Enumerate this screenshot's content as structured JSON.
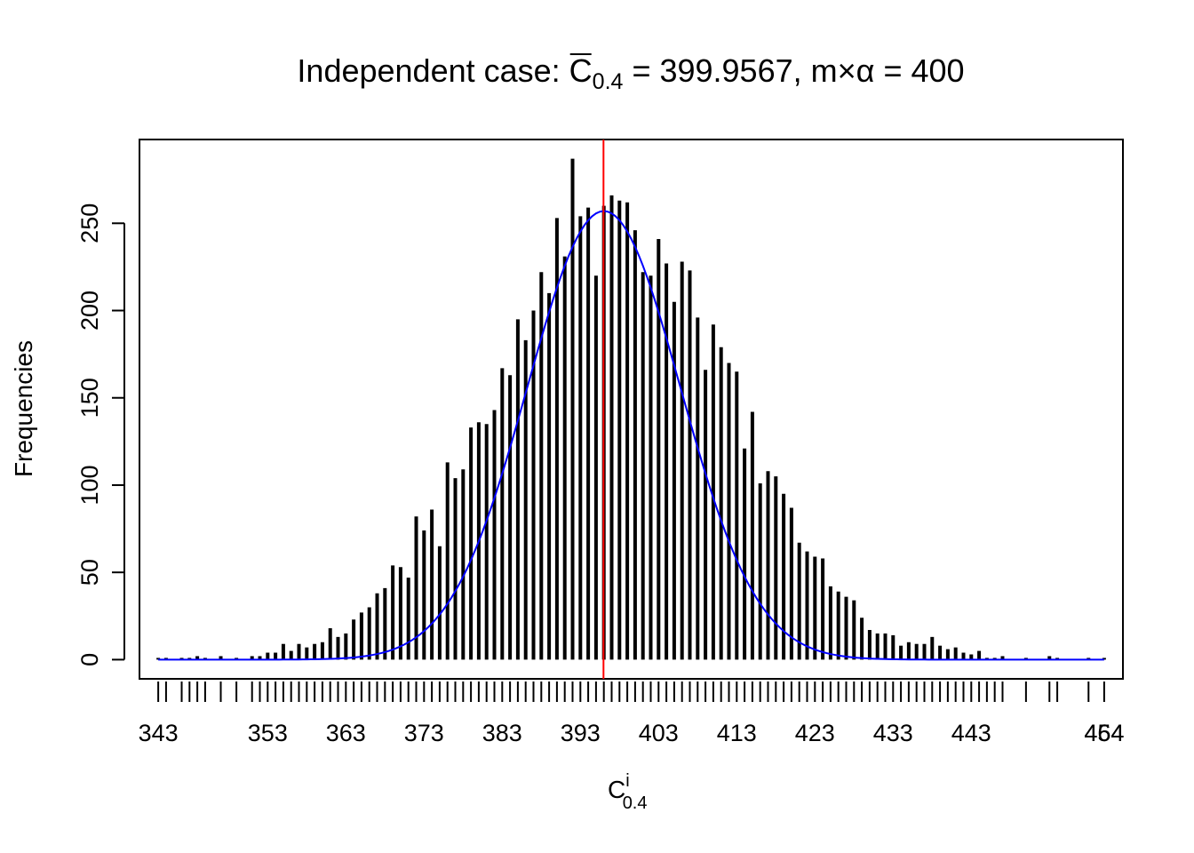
{
  "chart_data": {
    "type": "bar",
    "title": {
      "prefix": "Independent case: ",
      "stat_symbol": "C",
      "stat_subscript": "0.4",
      "stat_value": " = 399.9567, ",
      "product_m": "m",
      "product_times": "×",
      "product_alpha": "α",
      "product_value": " = 400"
    },
    "xlabel": {
      "base": "C",
      "superscript": "i",
      "subscript": "0.4"
    },
    "ylabel": "Frequencies",
    "xlim": [
      340.6,
      466.4
    ],
    "ylim": [
      -11,
      298
    ],
    "y_ticks": [
      0,
      50,
      100,
      150,
      200,
      250
    ],
    "x_tick_labels": [
      "343",
      "353",
      "363",
      "373",
      "383",
      "393",
      "403",
      "413",
      "423",
      "433",
      "443",
      "454",
      "464"
    ],
    "grid": false,
    "colors": {
      "bars": "#000000",
      "reference_line": "#ff0000",
      "density_curve": "#0000ff",
      "frame": "#000000"
    },
    "reference_line": {
      "x": 399.9567
    },
    "density_curve": {
      "mean": 400,
      "sd": 9.8,
      "peak": 257
    },
    "x": [
      343,
      344,
      346,
      347,
      348,
      349,
      351,
      353,
      355,
      356,
      357,
      358,
      359,
      360,
      361,
      362,
      363,
      364,
      365,
      366,
      367,
      368,
      369,
      370,
      371,
      372,
      373,
      374,
      375,
      376,
      377,
      378,
      379,
      380,
      381,
      382,
      383,
      384,
      385,
      386,
      387,
      388,
      389,
      390,
      391,
      392,
      393,
      394,
      395,
      396,
      397,
      398,
      399,
      400,
      401,
      402,
      403,
      404,
      405,
      406,
      407,
      408,
      409,
      410,
      411,
      412,
      413,
      414,
      415,
      416,
      417,
      418,
      419,
      420,
      421,
      422,
      423,
      424,
      425,
      426,
      427,
      428,
      429,
      430,
      431,
      432,
      433,
      434,
      435,
      436,
      437,
      438,
      439,
      440,
      441,
      442,
      443,
      444,
      445,
      446,
      447,
      448,
      449,
      450,
      451,
      454,
      457,
      458,
      462,
      464
    ],
    "values": [
      1,
      1,
      1,
      1,
      2,
      1,
      2,
      1,
      2,
      2,
      4,
      4,
      9,
      5,
      9,
      7,
      9,
      10,
      18,
      13,
      15,
      23,
      27,
      30,
      38,
      41,
      54,
      53,
      47,
      82,
      74,
      86,
      65,
      113,
      104,
      109,
      133,
      136,
      135,
      143,
      167,
      163,
      195,
      183,
      200,
      222,
      210,
      253,
      231,
      287,
      254,
      259,
      220,
      260,
      266,
      263,
      262,
      246,
      222,
      220,
      241,
      227,
      205,
      228,
      223,
      196,
      166,
      192,
      179,
      170,
      165,
      121,
      142,
      101,
      108,
      105,
      95,
      87,
      67,
      62,
      59,
      58,
      42,
      39,
      36,
      34,
      24,
      17,
      15,
      15,
      14,
      8,
      10,
      9,
      9,
      13,
      8,
      6,
      7,
      4,
      3,
      5,
      1,
      1,
      2,
      1,
      2,
      1,
      1,
      1
    ]
  }
}
